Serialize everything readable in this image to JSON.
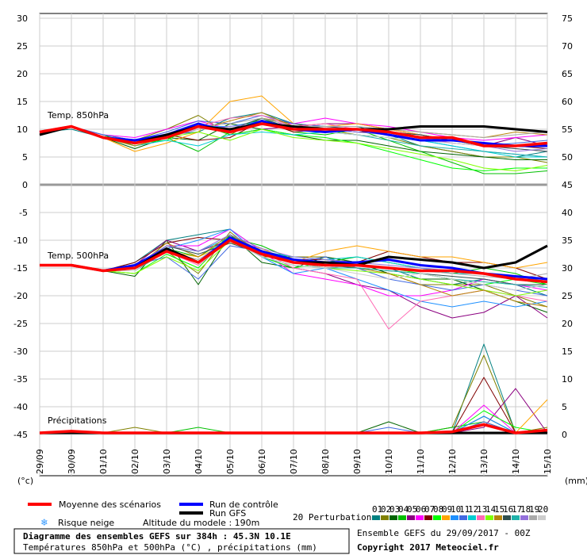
{
  "chart_data": {
    "type": "line",
    "title": "Diagramme des ensembles GEFS sur 384h : 45.3N 10.1E",
    "subtitle": "Températures 850hPa et 500hPa (°C) , précipitations (mm)",
    "left_axis_unit": "(°c)",
    "right_axis_unit": "(mm)",
    "left_ticks": [
      30,
      25,
      20,
      15,
      10,
      5,
      0,
      -5,
      -10,
      -15,
      -20,
      -25,
      -30,
      -35,
      -40,
      -45
    ],
    "right_ticks": [
      75,
      70,
      65,
      60,
      55,
      50,
      45,
      40,
      35,
      30,
      25,
      20,
      15,
      10,
      5,
      0
    ],
    "x_categories": [
      "29/09",
      "30/09",
      "01/10",
      "02/10",
      "03/10",
      "04/10",
      "05/10",
      "06/10",
      "07/10",
      "08/10",
      "09/10",
      "10/10",
      "11/10",
      "12/10",
      "13/10",
      "14/10",
      "15/10"
    ],
    "panel_labels": {
      "t850": "Temp. 850hPa",
      "t500": "Temp. 500hPa",
      "precip": "Précipitations"
    },
    "series": [
      {
        "name": "Moyenne des scénarios",
        "color": "#ff0000",
        "panel": "t850",
        "values": [
          9.5,
          10.5,
          8.5,
          7.5,
          8.5,
          10.5,
          9.5,
          11,
          10,
          10,
          10,
          9.5,
          8.5,
          8.5,
          7,
          7,
          7.5
        ]
      },
      {
        "name": "Run de contrôle",
        "color": "#0000ff",
        "panel": "t850",
        "values": [
          9.5,
          10.5,
          8.5,
          8,
          9,
          11,
          9.5,
          11.5,
          10,
          9.5,
          10,
          9,
          8,
          8,
          7.5,
          7,
          7
        ]
      },
      {
        "name": "Run GFS",
        "color": "#000000",
        "panel": "t850",
        "values": [
          9,
          10.5,
          8.5,
          7.5,
          9,
          10.5,
          10,
          11,
          10.5,
          10,
          10,
          10,
          10.5,
          10.5,
          10.5,
          10,
          9.5
        ]
      },
      {
        "name": "Moyenne des scénarios",
        "color": "#ff0000",
        "panel": "t500",
        "values": [
          -14.5,
          -14.5,
          -15.5,
          -15,
          -12,
          -14,
          -10,
          -12.5,
          -14,
          -14.5,
          -14.5,
          -15,
          -15.5,
          -15.5,
          -16,
          -17,
          -17.5
        ]
      },
      {
        "name": "Run de contrôle",
        "color": "#0000ff",
        "panel": "t500",
        "values": [
          -14.5,
          -14.5,
          -15.5,
          -14.5,
          -11.5,
          -14,
          -9.5,
          -12,
          -13.5,
          -14,
          -14,
          -13.5,
          -14.5,
          -15,
          -16,
          -16.5,
          -17
        ]
      },
      {
        "name": "Run GFS",
        "color": "#000000",
        "panel": "t500",
        "values": [
          -14.5,
          -14.5,
          -15.5,
          -15,
          -11.5,
          -14,
          -10,
          -12.5,
          -14,
          -14,
          -14.5,
          -13,
          -13.5,
          -14,
          -15,
          -14,
          -11
        ]
      },
      {
        "name": "Moyenne des scénarios",
        "color": "#ff0000",
        "panel": "precip",
        "values": [
          0,
          0.3,
          0,
          0,
          0,
          0,
          0,
          0,
          0,
          0,
          0,
          0,
          0,
          0.2,
          1.5,
          0,
          0.5
        ]
      },
      {
        "name": "Run de contrôle",
        "color": "#0000ff",
        "panel": "precip",
        "values": [
          0,
          0,
          0,
          0,
          0,
          0,
          0,
          0,
          0,
          0,
          0,
          0,
          0,
          0,
          0,
          0,
          0
        ]
      },
      {
        "name": "Run GFS",
        "color": "#000000",
        "panel": "precip",
        "values": [
          0,
          0,
          0,
          0,
          0,
          0,
          0,
          0,
          0,
          0,
          0,
          0,
          0,
          0,
          0,
          0,
          0
        ]
      }
    ],
    "perturbation_colors": [
      "#008080",
      "#808000",
      "#006400",
      "#00c000",
      "#8b0080",
      "#ff00ff",
      "#800000",
      "#00ff00",
      "#ffa500",
      "#1e90ff",
      "#4169e1",
      "#00ced1",
      "#ff69b4",
      "#7fff00",
      "#b8860b",
      "#2f4f4f",
      "#20b2aa",
      "#9370db",
      "#a9a9a9",
      "#cccccc"
    ],
    "perturbations_t850": [
      [
        9.5,
        10,
        8.5,
        7.5,
        9,
        9.5,
        12,
        13,
        11,
        10.5,
        10.5,
        9,
        7,
        6,
        5,
        5,
        6
      ],
      [
        9.5,
        10.5,
        9,
        8,
        10,
        12.5,
        9,
        12,
        11,
        10,
        9,
        8.5,
        7,
        6,
        5,
        5,
        4
      ],
      [
        9.5,
        10.5,
        8.5,
        6.5,
        8.5,
        8,
        11,
        10,
        9,
        8,
        8,
        7,
        6,
        5.5,
        5,
        4.5,
        4.5
      ],
      [
        9.5,
        10.5,
        9,
        7,
        8.5,
        6,
        9.5,
        12,
        9.5,
        9,
        10,
        8,
        6,
        4,
        2,
        2,
        2.5
      ],
      [
        9.5,
        10.5,
        8.5,
        7.5,
        9,
        11,
        9,
        10,
        10.5,
        11,
        11,
        10,
        9,
        8,
        7,
        8.5,
        7
      ],
      [
        9.5,
        10.5,
        9,
        8.5,
        10,
        11.5,
        10,
        11,
        11,
        12,
        11,
        10.5,
        9.5,
        8.5,
        8,
        8.5,
        9
      ],
      [
        9.5,
        10.5,
        8.5,
        8,
        9,
        8,
        8.5,
        11.5,
        9.5,
        10,
        9.5,
        9.5,
        9,
        8,
        7.5,
        7,
        6.5
      ],
      [
        9.5,
        10.5,
        8.5,
        7.5,
        8,
        11,
        9,
        10,
        9,
        8.5,
        7.5,
        6,
        4.5,
        3,
        2.5,
        3,
        3
      ],
      [
        9.5,
        10.5,
        8.5,
        6,
        7.5,
        9.5,
        15,
        16,
        11,
        10.5,
        11,
        10,
        9,
        8,
        7.5,
        7,
        7.5
      ],
      [
        9.5,
        10.5,
        8.5,
        7.5,
        9,
        10.5,
        10.5,
        11.5,
        10,
        10,
        9.5,
        9,
        8,
        7,
        6,
        5.5,
        5
      ],
      [
        9.5,
        10.5,
        9,
        8,
        9.5,
        11.5,
        11,
        12.5,
        11,
        10.5,
        10,
        9.5,
        8.5,
        8,
        7,
        7.5,
        8
      ],
      [
        9.5,
        10.5,
        8.5,
        7,
        8,
        7,
        9,
        9.5,
        9,
        9.5,
        9,
        8.5,
        8,
        7,
        6,
        5,
        5
      ],
      [
        9.5,
        10.5,
        8.5,
        7.5,
        9,
        10.5,
        12,
        12.5,
        10.5,
        11,
        10,
        9,
        8.5,
        7.5,
        7,
        6.5,
        6
      ],
      [
        9.5,
        10.5,
        8.5,
        7.5,
        8.5,
        9.5,
        8,
        10,
        8.5,
        8,
        7.5,
        6.5,
        5.5,
        4.5,
        3,
        2.5,
        3.5
      ],
      [
        9.5,
        10.5,
        8.5,
        7,
        8.5,
        10,
        11.5,
        13,
        10.5,
        10,
        10,
        10,
        9.5,
        9,
        8.5,
        9.5,
        9
      ],
      [
        9.5,
        10.5,
        8.5,
        7.5,
        9,
        10,
        10,
        12,
        10,
        10.5,
        10,
        9.5,
        9,
        8,
        7,
        6.5,
        6
      ],
      [
        9.5,
        10.5,
        8.5,
        7.5,
        9,
        11,
        9.5,
        11,
        10,
        9.5,
        9,
        8,
        7,
        6.5,
        6,
        5.5,
        5
      ],
      [
        9.5,
        10.5,
        8.5,
        7.5,
        8.5,
        10,
        10.5,
        11,
        10.5,
        10,
        9.5,
        9,
        8,
        7.5,
        7,
        6,
        6.5
      ],
      [
        9.5,
        10.5,
        8.5,
        7.5,
        9,
        10.5,
        11,
        12,
        10.5,
        10.5,
        10.5,
        10,
        9.5,
        9,
        8.5,
        9,
        9.5
      ],
      [
        9.5,
        10.5,
        8.5,
        7.5,
        9,
        10,
        10,
        11,
        10,
        9.5,
        9,
        8.5,
        8,
        7.5,
        7,
        7,
        7
      ]
    ],
    "perturbations_t500": [
      [
        -14.5,
        -14.5,
        -15.5,
        -14,
        -10,
        -9,
        -8,
        -12,
        -14,
        -15,
        -14.5,
        -15,
        -17,
        -18,
        -17,
        -18,
        -20
      ],
      [
        -14.5,
        -14.5,
        -15.5,
        -15.5,
        -12,
        -16,
        -8.5,
        -13,
        -13,
        -13,
        -14,
        -16,
        -18,
        -18,
        -18,
        -20,
        -22
      ],
      [
        -14.5,
        -14.5,
        -15.5,
        -16.5,
        -10,
        -18,
        -9,
        -14,
        -15,
        -13,
        -14,
        -16,
        -17,
        -17,
        -19,
        -21,
        -23
      ],
      [
        -14.5,
        -14.5,
        -15.5,
        -15,
        -11.5,
        -13,
        -9.5,
        -11,
        -13.5,
        -14,
        -13,
        -14,
        -15,
        -16,
        -15,
        -16,
        -18
      ],
      [
        -14.5,
        -14.5,
        -15.5,
        -14.5,
        -10,
        -12,
        -10,
        -13,
        -15,
        -16,
        -18,
        -19,
        -22,
        -24,
        -23,
        -20,
        -24
      ],
      [
        -14.5,
        -14.5,
        -15.5,
        -15,
        -11,
        -11,
        -8,
        -12,
        -16,
        -17,
        -18,
        -20,
        -20,
        -19,
        -17,
        -18,
        -19
      ],
      [
        -14.5,
        -14.5,
        -15.5,
        -14,
        -10.5,
        -9.5,
        -10,
        -12.5,
        -13.5,
        -13.5,
        -14,
        -12,
        -13,
        -14,
        -14,
        -15,
        -17
      ],
      [
        -14.5,
        -14.5,
        -15.5,
        -16,
        -12.5,
        -15,
        -9,
        -13,
        -15,
        -14,
        -14.5,
        -15,
        -16,
        -17,
        -18,
        -17,
        -18
      ],
      [
        -14.5,
        -14.5,
        -15.5,
        -15.5,
        -12,
        -13,
        -10.5,
        -11.5,
        -14,
        -12,
        -11,
        -12,
        -13,
        -13,
        -14,
        -15,
        -14
      ],
      [
        -14.5,
        -14.5,
        -15.5,
        -15,
        -11.5,
        -10,
        -8,
        -13,
        -16,
        -15,
        -17,
        -19,
        -21,
        -22,
        -21,
        -22,
        -21
      ],
      [
        -14.5,
        -14.5,
        -15.5,
        -14.5,
        -13,
        -17,
        -11,
        -12,
        -14,
        -13,
        -15,
        -17,
        -18,
        -19,
        -18,
        -19,
        -20
      ],
      [
        -14.5,
        -14.5,
        -15.5,
        -15,
        -11,
        -12,
        -9.5,
        -12,
        -13,
        -13.5,
        -13,
        -14,
        -15,
        -16,
        -16,
        -17,
        -17
      ],
      [
        -14.5,
        -14.5,
        -15.5,
        -15,
        -12,
        -14.5,
        -10,
        -12,
        -15,
        -16,
        -17,
        -26,
        -21,
        -20,
        -19,
        -20,
        -21
      ],
      [
        -14.5,
        -14.5,
        -15.5,
        -16,
        -13,
        -15.5,
        -10,
        -12,
        -14,
        -15,
        -15.5,
        -16,
        -17,
        -18,
        -19,
        -20,
        -19
      ],
      [
        -14.5,
        -14.5,
        -15.5,
        -15,
        -10.5,
        -13,
        -9,
        -12,
        -13.5,
        -14,
        -15,
        -16,
        -18,
        -20,
        -19,
        -21,
        -22
      ],
      [
        -14.5,
        -14.5,
        -15.5,
        -15,
        -11,
        -12.5,
        -10.5,
        -12.5,
        -14,
        -14.5,
        -15,
        -15.5,
        -16,
        -16.5,
        -17,
        -18,
        -18
      ],
      [
        -14.5,
        -14.5,
        -15.5,
        -15.5,
        -12,
        -14,
        -9.5,
        -13,
        -14.5,
        -15,
        -15,
        -15.5,
        -16,
        -17,
        -17.5,
        -18,
        -18.5
      ],
      [
        -14.5,
        -14.5,
        -15.5,
        -14.5,
        -11,
        -12,
        -9,
        -11.5,
        -13,
        -13.5,
        -14,
        -14.5,
        -15,
        -15.5,
        -16,
        -16.5,
        -17
      ],
      [
        -14.5,
        -14.5,
        -15.5,
        -15,
        -12,
        -13.5,
        -10,
        -12,
        -14,
        -15,
        -14.5,
        -15,
        -15.5,
        -16,
        -16.5,
        -17,
        -16
      ],
      [
        -14.5,
        -14.5,
        -15.5,
        -15.5,
        -11.5,
        -14,
        -10,
        -13,
        -14.5,
        -15,
        -16,
        -17,
        -16,
        -17,
        -18,
        -19,
        -18
      ]
    ],
    "perturbations_precip": [
      [
        0,
        0,
        0,
        0,
        0,
        0,
        0,
        0,
        0,
        0,
        0,
        0,
        0,
        0,
        16,
        0,
        0
      ],
      [
        0,
        0,
        0,
        1,
        0,
        0,
        0,
        0,
        0,
        0,
        0,
        0,
        0,
        1,
        14,
        0,
        1
      ],
      [
        0,
        0,
        0,
        0,
        0,
        0,
        0,
        0,
        0,
        0,
        0,
        2,
        0,
        0,
        3,
        0,
        0
      ],
      [
        0,
        0,
        0,
        0,
        0,
        1,
        0,
        0,
        0,
        0,
        0,
        0,
        0,
        1,
        2,
        0,
        0
      ],
      [
        0,
        0,
        0,
        0,
        0,
        0,
        0,
        0,
        0,
        0,
        0,
        0,
        0,
        0,
        1,
        8,
        0
      ],
      [
        0,
        0,
        0,
        0,
        0,
        0,
        0,
        0,
        0,
        0,
        0,
        0,
        0,
        0,
        5,
        0,
        0
      ],
      [
        0,
        0,
        0,
        0,
        0,
        0,
        0,
        0,
        0,
        0,
        0,
        0,
        0,
        0,
        10,
        0,
        0
      ],
      [
        0,
        0,
        0,
        0,
        0,
        0,
        0,
        0,
        0,
        0,
        0,
        0,
        0,
        0,
        4,
        1,
        0
      ],
      [
        0,
        0,
        0,
        0,
        0,
        0,
        0,
        0,
        0,
        0,
        0,
        0,
        0,
        0,
        2,
        0,
        6
      ],
      [
        0,
        0,
        0,
        0,
        0,
        0,
        0,
        0,
        0,
        0,
        0,
        0,
        0,
        0,
        3,
        0,
        0
      ],
      [
        0,
        0,
        0,
        0,
        0,
        0,
        0,
        0,
        0,
        0,
        0,
        1,
        0,
        0,
        2,
        0,
        0
      ],
      [
        0,
        0,
        0,
        0,
        0,
        0,
        0,
        0,
        0,
        0,
        0,
        0,
        0,
        0,
        0,
        0,
        0
      ],
      [
        0,
        0,
        0,
        0,
        0,
        0,
        0,
        0,
        0,
        0,
        0,
        0,
        0,
        0,
        0,
        0,
        0
      ],
      [
        0,
        0,
        0,
        0,
        0,
        0,
        0,
        0,
        0,
        0,
        0,
        0,
        0,
        0,
        0,
        0,
        0
      ],
      [
        0,
        0,
        0,
        0,
        0,
        0,
        0,
        0,
        0,
        0,
        0,
        0,
        0,
        0,
        0,
        0,
        0
      ],
      [
        0,
        0,
        0,
        0,
        0,
        0,
        0,
        0,
        0,
        0,
        0,
        0,
        0,
        0,
        0,
        0,
        0
      ],
      [
        0,
        0,
        0,
        0,
        0,
        0,
        0,
        0,
        0,
        0,
        0,
        0,
        0,
        0,
        0,
        0,
        0
      ],
      [
        0,
        0,
        0,
        0,
        0,
        0,
        0,
        0,
        0,
        0,
        0,
        0,
        0,
        0,
        0,
        0,
        0
      ],
      [
        0,
        0,
        0,
        0,
        0,
        0,
        0,
        0,
        0,
        0,
        0,
        0,
        0,
        0,
        0,
        0,
        0
      ],
      [
        0,
        0,
        0,
        0,
        0,
        0,
        0,
        0,
        0,
        0,
        0,
        0,
        0,
        0,
        0,
        0,
        0
      ]
    ],
    "grid": true,
    "legend_position": "bottom"
  },
  "legend": {
    "mean": "Moyenne des scénarios",
    "control": "Run de contrôle",
    "gfs": "Run GFS",
    "snow": "Risque neige",
    "altitude": "Altitude du modele : 190m",
    "perturbations": "20 Perturbations",
    "pert_numbers": [
      "01",
      "02",
      "03",
      "04",
      "05",
      "06",
      "07",
      "08",
      "09",
      "10",
      "11",
      "12",
      "13",
      "14",
      "15",
      "16",
      "17",
      "18",
      "19",
      "20"
    ]
  },
  "footer": {
    "title": "Diagramme des ensembles GEFS sur 384h : 45.3N 10.1E",
    "subtitle": "Températures 850hPa et 500hPa (°C) , précipitations (mm)",
    "run_info": "Ensemble GEFS du 29/09/2017 - 00Z",
    "copyright": "Copyright 2017 Meteociel.fr"
  }
}
